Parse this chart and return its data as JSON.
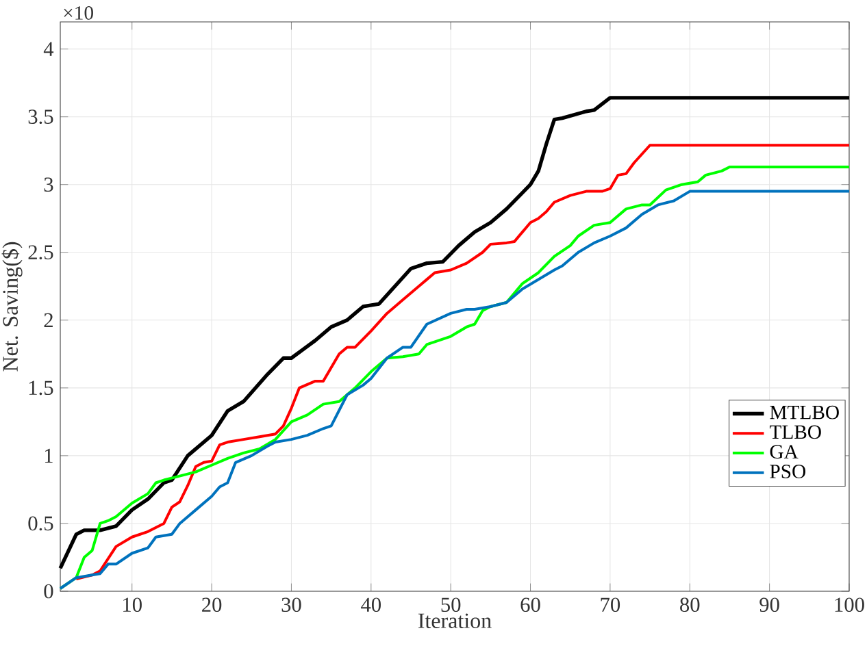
{
  "chart_data": {
    "type": "line",
    "xlabel": "Iteration",
    "ylabel": "Net. Saving($)",
    "annotations": [
      "×10"
    ],
    "xlim": [
      1,
      100
    ],
    "xticks": [
      10,
      20,
      30,
      40,
      50,
      60,
      70,
      80,
      90,
      100
    ],
    "ylim": [
      0,
      4.2
    ],
    "yticks": [
      0,
      0.5,
      1,
      1.5,
      2,
      2.5,
      3,
      3.5,
      4
    ],
    "grid": true,
    "legend": "bottom right",
    "line_style": "solid",
    "series": [
      {
        "name": "MTLBO",
        "color": "#000000",
        "x": [
          1,
          3,
          4,
          6,
          8,
          10,
          12,
          14,
          15,
          17,
          20,
          22,
          24,
          27,
          29,
          30,
          33,
          35,
          37,
          39,
          41,
          43,
          45,
          47,
          49,
          51,
          53,
          55,
          57,
          60,
          61,
          62,
          63,
          64,
          67,
          68,
          70,
          100
        ],
        "values": [
          0.17,
          0.42,
          0.45,
          0.45,
          0.48,
          0.6,
          0.68,
          0.8,
          0.82,
          1.0,
          1.15,
          1.33,
          1.4,
          1.6,
          1.72,
          1.72,
          1.85,
          1.95,
          2.0,
          2.1,
          2.12,
          2.25,
          2.38,
          2.42,
          2.43,
          2.55,
          2.65,
          2.72,
          2.82,
          3.0,
          3.1,
          3.3,
          3.48,
          3.49,
          3.54,
          3.55,
          3.64,
          3.64
        ]
      },
      {
        "name": "TLBO",
        "color": "#ff0000",
        "x": [
          3,
          5,
          6,
          8,
          10,
          12,
          14,
          15,
          16,
          17,
          18,
          19,
          20,
          21,
          22,
          24,
          26,
          28,
          29,
          30,
          31,
          33,
          34,
          36,
          37,
          38,
          40,
          42,
          44,
          46,
          47,
          48,
          50,
          52,
          54,
          55,
          57,
          58,
          60,
          61,
          62,
          63,
          65,
          67,
          69,
          70,
          71,
          72,
          73,
          75,
          100
        ],
        "values": [
          0.09,
          0.12,
          0.15,
          0.33,
          0.4,
          0.44,
          0.5,
          0.62,
          0.66,
          0.78,
          0.92,
          0.95,
          0.96,
          1.08,
          1.1,
          1.12,
          1.14,
          1.16,
          1.22,
          1.35,
          1.5,
          1.55,
          1.55,
          1.75,
          1.8,
          1.8,
          1.92,
          2.05,
          2.15,
          2.25,
          2.3,
          2.35,
          2.37,
          2.42,
          2.5,
          2.56,
          2.57,
          2.58,
          2.72,
          2.75,
          2.8,
          2.87,
          2.92,
          2.95,
          2.95,
          2.97,
          3.07,
          3.08,
          3.16,
          3.29,
          3.29
        ]
      },
      {
        "name": "GA",
        "color": "#00ff00",
        "x": [
          1,
          3,
          4,
          5,
          6,
          7,
          8,
          10,
          12,
          13,
          14,
          16,
          18,
          20,
          22,
          24,
          26,
          28,
          30,
          32,
          34,
          36,
          38,
          40,
          42,
          44,
          46,
          47,
          50,
          52,
          53,
          54,
          55,
          57,
          59,
          61,
          63,
          65,
          66,
          68,
          70,
          72,
          74,
          75,
          77,
          79,
          81,
          82,
          84,
          85,
          100
        ],
        "values": [
          0.02,
          0.1,
          0.25,
          0.3,
          0.5,
          0.52,
          0.55,
          0.65,
          0.72,
          0.8,
          0.82,
          0.85,
          0.88,
          0.93,
          0.98,
          1.02,
          1.05,
          1.12,
          1.25,
          1.3,
          1.38,
          1.4,
          1.5,
          1.62,
          1.72,
          1.73,
          1.75,
          1.82,
          1.88,
          1.95,
          1.97,
          2.07,
          2.1,
          2.13,
          2.27,
          2.35,
          2.47,
          2.55,
          2.62,
          2.7,
          2.72,
          2.82,
          2.85,
          2.85,
          2.96,
          3.0,
          3.02,
          3.07,
          3.1,
          3.13,
          3.13
        ]
      },
      {
        "name": "PSO",
        "color": "#0072bd",
        "x": [
          1,
          3,
          5,
          6,
          7,
          8,
          10,
          12,
          13,
          15,
          16,
          18,
          20,
          21,
          22,
          23,
          25,
          27,
          28,
          30,
          32,
          34,
          35,
          37,
          39,
          40,
          42,
          44,
          45,
          47,
          50,
          52,
          53,
          55,
          57,
          59,
          61,
          63,
          64,
          66,
          68,
          70,
          72,
          74,
          76,
          78,
          80,
          100
        ],
        "values": [
          0.02,
          0.1,
          0.12,
          0.13,
          0.2,
          0.2,
          0.28,
          0.32,
          0.4,
          0.42,
          0.5,
          0.6,
          0.7,
          0.77,
          0.8,
          0.95,
          1.0,
          1.07,
          1.1,
          1.12,
          1.15,
          1.2,
          1.22,
          1.45,
          1.52,
          1.57,
          1.72,
          1.8,
          1.8,
          1.97,
          2.05,
          2.08,
          2.08,
          2.1,
          2.13,
          2.23,
          2.3,
          2.37,
          2.4,
          2.5,
          2.57,
          2.62,
          2.68,
          2.78,
          2.85,
          2.88,
          2.95,
          2.95
        ]
      }
    ]
  }
}
